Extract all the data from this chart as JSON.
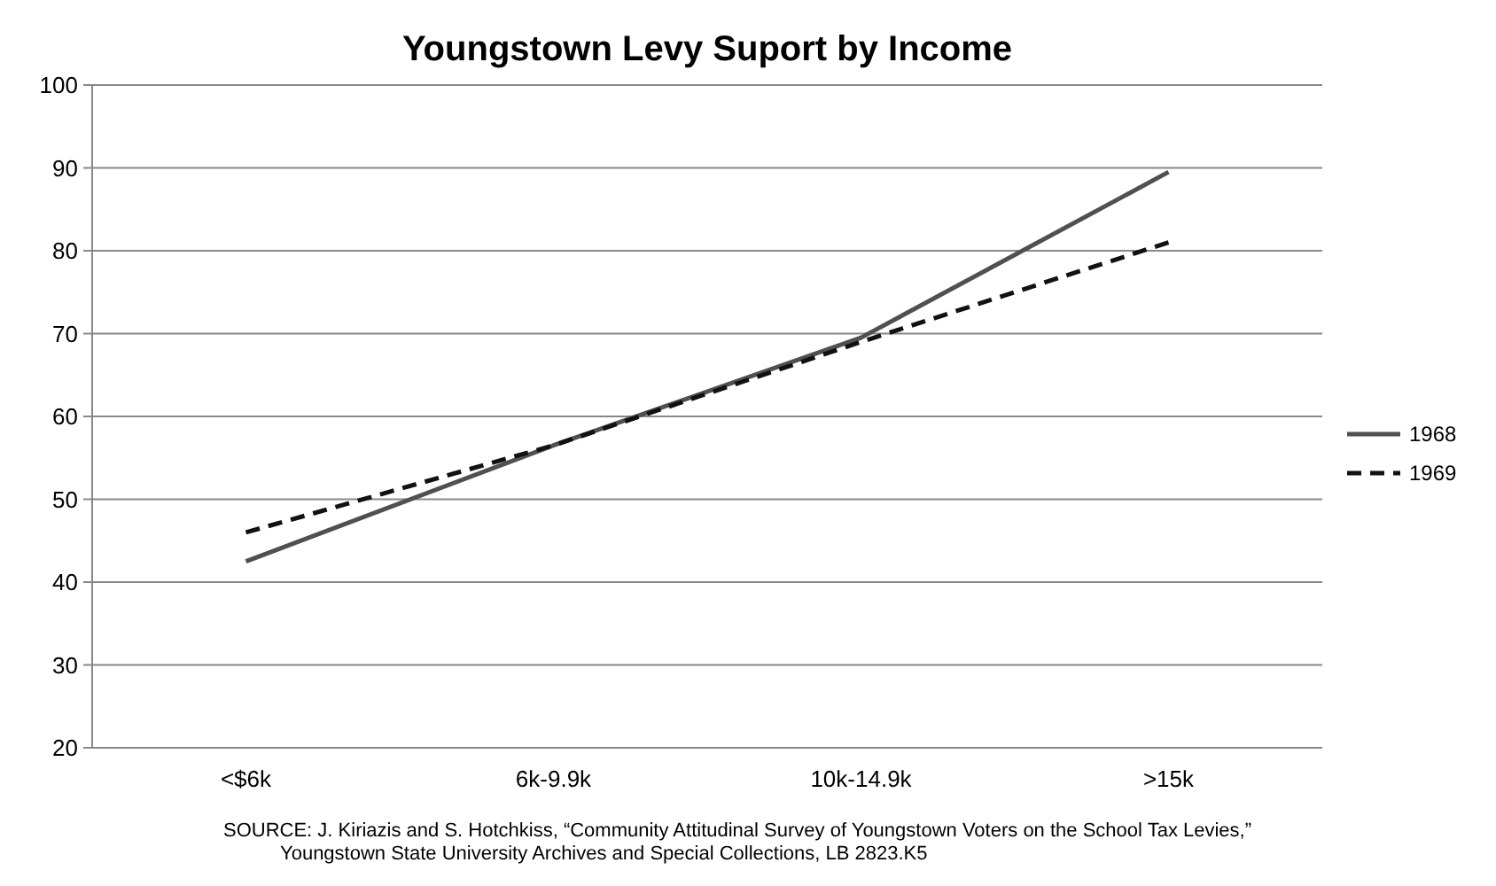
{
  "chart_data": {
    "type": "line",
    "title": "Youngstown Levy Suport by Income",
    "categories": [
      "<$6k",
      "6k-9.9k",
      "10k-14.9k",
      ">15k"
    ],
    "series": [
      {
        "name": "1968",
        "color": "#505050",
        "values": [
          42.5,
          56.5,
          69.5,
          89.5
        ],
        "line_style": "solid"
      },
      {
        "name": "1969",
        "color": "#111111",
        "values": [
          46,
          56.5,
          69,
          81
        ],
        "line_style": "dashed"
      }
    ],
    "ylim": [
      20,
      100
    ],
    "yticks": [
      20,
      30,
      40,
      50,
      60,
      70,
      80,
      90,
      100
    ],
    "grid": "y",
    "legend": "right",
    "marker": "none",
    "annotations": [
      "SOURCE: J. Kiriazis and S. Hotchkiss, “Community Attitudinal Survey of Youngstown Voters on the School Tax Levies,”",
      "Youngstown State University Archives and Special Collections, LB 2823.K5"
    ]
  }
}
